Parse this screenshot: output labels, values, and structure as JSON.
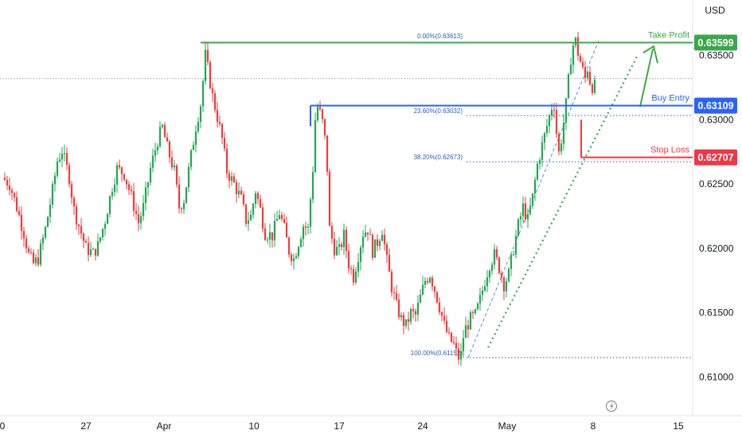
{
  "colors": {
    "up": "#22a653",
    "down": "#ef3b3b",
    "take_profit": "#3aa84a",
    "buy_entry": "#2962ff",
    "stop_loss": "#f23645",
    "fib": "#2a5fb8",
    "trend": "#3aa84a",
    "axis_text": "#131722"
  },
  "chart_data": {
    "type": "candlestick",
    "currency_label": "USD",
    "ylim": [
      0.607,
      0.6393
    ],
    "y_ticks": [
      "0.63500",
      "0.63000",
      "0.62500",
      "0.62000",
      "0.61500",
      "0.61000"
    ],
    "x_ticks": [
      "0",
      "27",
      "Apr",
      "10",
      "17",
      "24",
      "May",
      "8",
      "15"
    ],
    "levels": [
      {
        "name": "Take Profit",
        "value": "0.63599"
      },
      {
        "name": "Buy Entry",
        "value": "0.63109"
      },
      {
        "name": "Stop Loss",
        "value": "0.62707"
      }
    ],
    "fib_levels": [
      {
        "label": "0.00%(0.63613)",
        "value": 0.63613
      },
      {
        "label": "23.60%(0.63032)",
        "value": 0.63032
      },
      {
        "label": "38.20%(0.62673)",
        "value": 0.62673
      },
      {
        "label": "100.00%(0.61152)",
        "value": 0.61152
      }
    ],
    "price_path": [
      [
        0,
        0.6255
      ],
      [
        3,
        0.625
      ],
      [
        6,
        0.6232
      ],
      [
        9,
        0.6212
      ],
      [
        11,
        0.6195
      ],
      [
        13,
        0.6188
      ],
      [
        15,
        0.6192
      ],
      [
        18,
        0.6215
      ],
      [
        21,
        0.6245
      ],
      [
        23,
        0.6268
      ],
      [
        25,
        0.6276
      ],
      [
        28,
        0.6255
      ],
      [
        30,
        0.623
      ],
      [
        33,
        0.6212
      ],
      [
        35,
        0.62
      ],
      [
        38,
        0.6196
      ],
      [
        40,
        0.6202
      ],
      [
        43,
        0.6222
      ],
      [
        46,
        0.6248
      ],
      [
        48,
        0.6262
      ],
      [
        51,
        0.6258
      ],
      [
        54,
        0.624
      ],
      [
        57,
        0.622
      ],
      [
        59,
        0.6232
      ],
      [
        62,
        0.6262
      ],
      [
        65,
        0.6284
      ],
      [
        67,
        0.6294
      ],
      [
        69,
        0.6278
      ],
      [
        72,
        0.626
      ],
      [
        74,
        0.6232
      ],
      [
        76,
        0.6238
      ],
      [
        79,
        0.6272
      ],
      [
        81,
        0.6295
      ],
      [
        83,
        0.6312
      ],
      [
        84,
        0.633
      ],
      [
        85,
        0.635
      ],
      [
        86,
        0.634
      ],
      [
        88,
        0.6318
      ],
      [
        90,
        0.6302
      ],
      [
        92,
        0.6285
      ],
      [
        94,
        0.626
      ],
      [
        97,
        0.625
      ],
      [
        100,
        0.6238
      ],
      [
        102,
        0.6222
      ],
      [
        104,
        0.6225
      ],
      [
        106,
        0.6245
      ],
      [
        108,
        0.623
      ],
      [
        110,
        0.6212
      ],
      [
        113,
        0.621
      ],
      [
        116,
        0.6228
      ],
      [
        118,
        0.6215
      ],
      [
        120,
        0.6198
      ],
      [
        122,
        0.6192
      ],
      [
        124,
        0.6205
      ],
      [
        126,
        0.6218
      ],
      [
        128,
        0.6215
      ],
      [
        130,
        0.6262
      ],
      [
        131,
        0.63
      ],
      [
        132,
        0.631
      ],
      [
        133,
        0.6305
      ],
      [
        134,
        0.6298
      ],
      [
        135,
        0.6285
      ],
      [
        136,
        0.6262
      ],
      [
        137,
        0.6215
      ],
      [
        139,
        0.62
      ],
      [
        141,
        0.6198
      ],
      [
        143,
        0.621
      ],
      [
        145,
        0.6188
      ],
      [
        147,
        0.6178
      ],
      [
        149,
        0.6195
      ],
      [
        151,
        0.6212
      ],
      [
        153,
        0.6215
      ],
      [
        155,
        0.6198
      ],
      [
        157,
        0.6205
      ],
      [
        159,
        0.6215
      ],
      [
        161,
        0.619
      ],
      [
        163,
        0.617
      ],
      [
        165,
        0.6155
      ],
      [
        167,
        0.6145
      ],
      [
        169,
        0.614
      ],
      [
        171,
        0.615
      ],
      [
        173,
        0.6148
      ],
      [
        175,
        0.6162
      ],
      [
        177,
        0.6175
      ],
      [
        179,
        0.618
      ],
      [
        181,
        0.6168
      ],
      [
        183,
        0.6155
      ],
      [
        185,
        0.614
      ],
      [
        187,
        0.613
      ],
      [
        189,
        0.6125
      ],
      [
        190,
        0.6119
      ],
      [
        191,
        0.61152
      ],
      [
        192,
        0.6125
      ],
      [
        194,
        0.6138
      ],
      [
        196,
        0.6145
      ],
      [
        198,
        0.6148
      ],
      [
        200,
        0.616
      ],
      [
        202,
        0.6175
      ],
      [
        204,
        0.6188
      ],
      [
        206,
        0.6195
      ],
      [
        208,
        0.6185
      ],
      [
        210,
        0.6172
      ],
      [
        212,
        0.618
      ],
      [
        214,
        0.62
      ],
      [
        216,
        0.6218
      ],
      [
        218,
        0.6232
      ],
      [
        220,
        0.6222
      ],
      [
        222,
        0.624
      ],
      [
        224,
        0.6265
      ],
      [
        226,
        0.628
      ],
      [
        228,
        0.6295
      ],
      [
        230,
        0.631
      ],
      [
        231,
        0.6312
      ],
      [
        232,
        0.629
      ],
      [
        233,
        0.6274
      ],
      [
        234,
        0.6285
      ],
      [
        235,
        0.6298
      ],
      [
        236,
        0.6312
      ],
      [
        237,
        0.633
      ],
      [
        238,
        0.6348
      ],
      [
        239,
        0.6358
      ],
      [
        240,
        0.6361
      ],
      [
        241,
        0.6352
      ],
      [
        242,
        0.6345
      ],
      [
        243,
        0.6338
      ],
      [
        244,
        0.6332
      ],
      [
        245,
        0.634
      ],
      [
        246,
        0.633
      ],
      [
        247,
        0.6326
      ]
    ]
  }
}
